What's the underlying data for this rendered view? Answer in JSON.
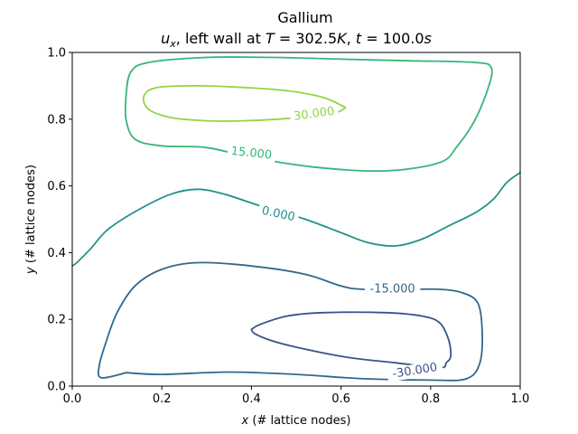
{
  "chart_data": {
    "type": "contour",
    "title": "Gallium",
    "subtitle": {
      "var": "u",
      "var_sub": "x",
      "wall_text": ", left wall at ",
      "T_sym": "T",
      "eq1": " = 302.5",
      "K_sym": "K",
      "sep": ", ",
      "t_sym": "t",
      "eq2": " = 100.0",
      "s_sym": "s"
    },
    "xlabel": {
      "sym": "x",
      "rest": " (# lattice nodes)"
    },
    "ylabel": {
      "sym": "y",
      "rest": " (# lattice nodes)"
    },
    "xlim": [
      0.0,
      1.0
    ],
    "ylim": [
      0.0,
      1.0
    ],
    "xticks": [
      "0.0",
      "0.2",
      "0.4",
      "0.6",
      "0.8",
      "1.0"
    ],
    "yticks": [
      "0.0",
      "0.2",
      "0.4",
      "0.6",
      "0.8",
      "1.0"
    ],
    "grid": false,
    "levels": [
      {
        "label": "30.000",
        "value": 30,
        "color": "#8fd744",
        "label_pos": [
          0.54,
          0.815
        ],
        "label_rot": -8,
        "path": [
          [
            0.61,
            0.835
          ],
          [
            0.56,
            0.865
          ],
          [
            0.48,
            0.885
          ],
          [
            0.38,
            0.895
          ],
          [
            0.28,
            0.9
          ],
          [
            0.19,
            0.895
          ],
          [
            0.16,
            0.87
          ],
          [
            0.17,
            0.83
          ],
          [
            0.22,
            0.805
          ],
          [
            0.3,
            0.795
          ],
          [
            0.38,
            0.795
          ],
          [
            0.46,
            0.8
          ],
          [
            0.54,
            0.81
          ],
          [
            0.59,
            0.82
          ],
          [
            0.61,
            0.835
          ]
        ]
      },
      {
        "label": "15.000",
        "value": 15,
        "color": "#35b779",
        "label_pos": [
          0.4,
          0.697
        ],
        "label_rot": 6,
        "path": [
          [
            0.12,
            0.87
          ],
          [
            0.13,
            0.94
          ],
          [
            0.17,
            0.97
          ],
          [
            0.3,
            0.985
          ],
          [
            0.45,
            0.985
          ],
          [
            0.6,
            0.98
          ],
          [
            0.75,
            0.975
          ],
          [
            0.9,
            0.97
          ],
          [
            0.935,
            0.955
          ],
          [
            0.93,
            0.9
          ],
          [
            0.9,
            0.8
          ],
          [
            0.86,
            0.72
          ],
          [
            0.82,
            0.67
          ],
          [
            0.7,
            0.645
          ],
          [
            0.55,
            0.655
          ],
          [
            0.4,
            0.685
          ],
          [
            0.3,
            0.715
          ],
          [
            0.2,
            0.72
          ],
          [
            0.14,
            0.74
          ],
          [
            0.12,
            0.8
          ],
          [
            0.12,
            0.87
          ]
        ]
      },
      {
        "label": "0.000",
        "value": 0,
        "color": "#21918c",
        "label_pos": [
          0.46,
          0.515
        ],
        "label_rot": 12,
        "path": [
          [
            0.0,
            0.36
          ],
          [
            0.01,
            0.37
          ],
          [
            0.04,
            0.41
          ],
          [
            0.08,
            0.47
          ],
          [
            0.15,
            0.53
          ],
          [
            0.22,
            0.575
          ],
          [
            0.28,
            0.59
          ],
          [
            0.34,
            0.575
          ],
          [
            0.42,
            0.54
          ],
          [
            0.52,
            0.5
          ],
          [
            0.6,
            0.46
          ],
          [
            0.66,
            0.43
          ],
          [
            0.72,
            0.42
          ],
          [
            0.78,
            0.44
          ],
          [
            0.84,
            0.48
          ],
          [
            0.9,
            0.52
          ],
          [
            0.94,
            0.56
          ],
          [
            0.97,
            0.61
          ],
          [
            1.0,
            0.64
          ]
        ]
      },
      {
        "label": "-15.000",
        "value": -15,
        "color": "#31688e",
        "label_pos": [
          0.715,
          0.29
        ],
        "label_rot": 0,
        "path": [
          [
            0.12,
            0.04
          ],
          [
            0.2,
            0.035
          ],
          [
            0.35,
            0.042
          ],
          [
            0.5,
            0.035
          ],
          [
            0.65,
            0.022
          ],
          [
            0.8,
            0.018
          ],
          [
            0.88,
            0.022
          ],
          [
            0.91,
            0.07
          ],
          [
            0.915,
            0.17
          ],
          [
            0.905,
            0.25
          ],
          [
            0.87,
            0.28
          ],
          [
            0.82,
            0.29
          ],
          [
            0.75,
            0.29
          ],
          [
            0.65,
            0.29
          ],
          [
            0.6,
            0.3
          ],
          [
            0.52,
            0.335
          ],
          [
            0.4,
            0.36
          ],
          [
            0.28,
            0.37
          ],
          [
            0.2,
            0.35
          ],
          [
            0.14,
            0.3
          ],
          [
            0.1,
            0.22
          ],
          [
            0.075,
            0.13
          ],
          [
            0.06,
            0.06
          ],
          [
            0.065,
            0.025
          ],
          [
            0.12,
            0.04
          ]
        ]
      },
      {
        "label": "-30.000",
        "value": -30,
        "color": "#3b528b",
        "label_pos": [
          0.765,
          0.045
        ],
        "label_rot": -9,
        "path": [
          [
            0.4,
            0.17
          ],
          [
            0.42,
            0.185
          ],
          [
            0.48,
            0.21
          ],
          [
            0.56,
            0.22
          ],
          [
            0.7,
            0.22
          ],
          [
            0.78,
            0.21
          ],
          [
            0.82,
            0.19
          ],
          [
            0.84,
            0.14
          ],
          [
            0.845,
            0.09
          ],
          [
            0.835,
            0.07
          ],
          [
            0.82,
            0.055
          ],
          [
            0.72,
            0.07
          ],
          [
            0.62,
            0.085
          ],
          [
            0.54,
            0.105
          ],
          [
            0.46,
            0.13
          ],
          [
            0.41,
            0.155
          ],
          [
            0.4,
            0.17
          ]
        ]
      }
    ]
  }
}
